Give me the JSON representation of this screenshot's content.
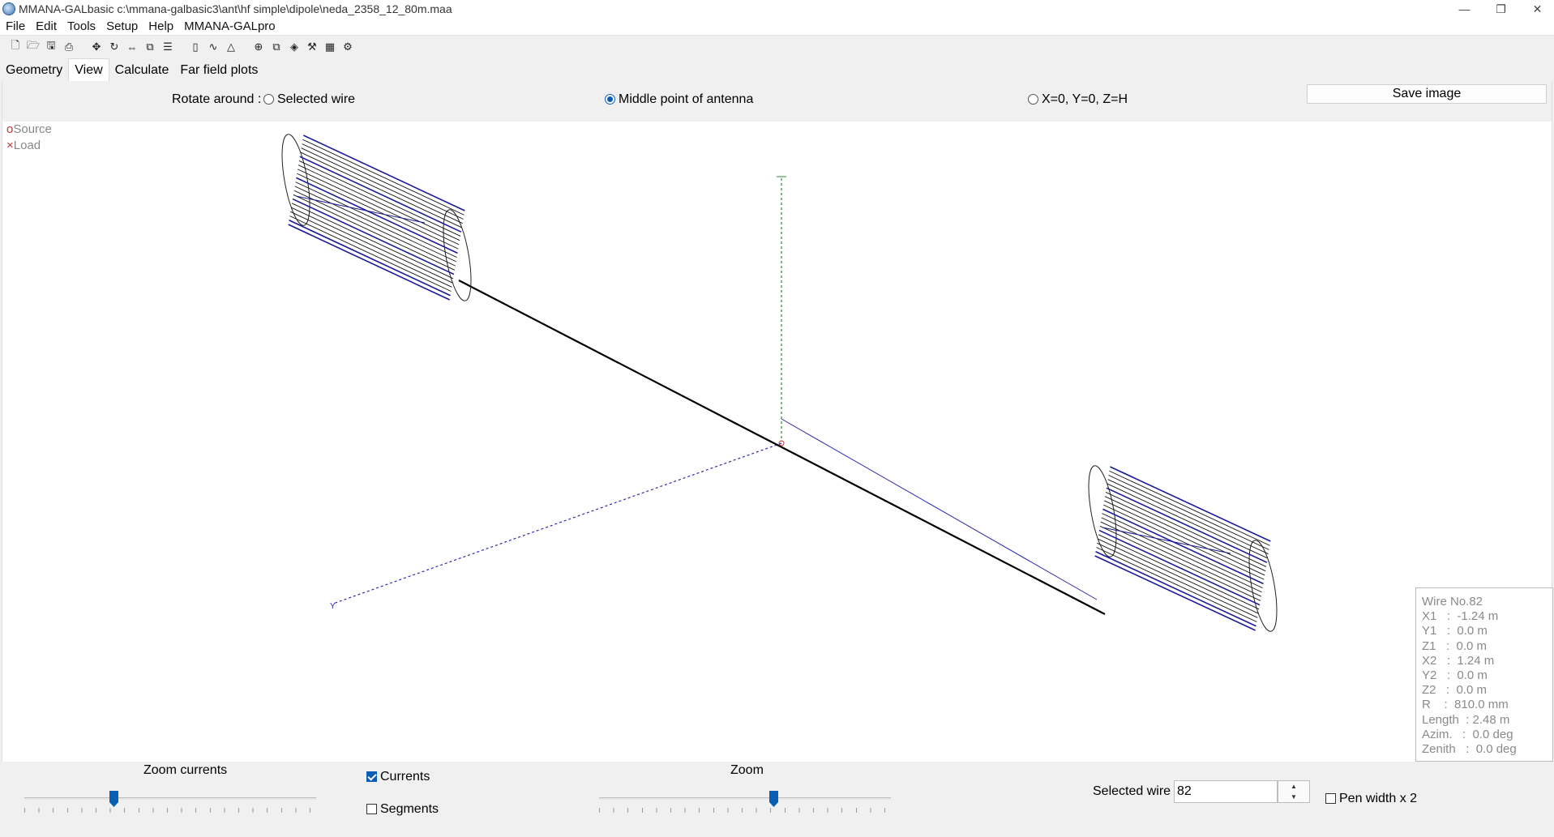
{
  "window": {
    "title": "MMANA-GALbasic c:\\mmana-galbasic3\\ant\\hf simple\\dipole\\neda_2358_12_80m.maa",
    "minimize": "—",
    "restore": "❐",
    "close": "✕"
  },
  "menu": [
    "File",
    "Edit",
    "Tools",
    "Setup",
    "Help",
    "MMANA-GALpro"
  ],
  "toolbar_icons": [
    "new-file-icon",
    "open-file-icon",
    "save-icon",
    "save-as-icon",
    "move-icon",
    "rotate-icon",
    "stretch-icon",
    "copy-icon",
    "wire-list-icon",
    "document-icon",
    "chart-icon",
    "triangle-icon",
    "center-icon",
    "duplicate-icon",
    "3d-view-icon",
    "tools-icon",
    "calculator-icon",
    "settings-icon"
  ],
  "tabs": [
    {
      "label": "Geometry",
      "active": false
    },
    {
      "label": "View",
      "active": true
    },
    {
      "label": "Calculate",
      "active": false
    },
    {
      "label": "Far field plots",
      "active": false
    }
  ],
  "rotate": {
    "label": "Rotate around :",
    "options": [
      "Selected wire",
      "Middle point of antenna",
      "X=0, Y=0, Z=H"
    ],
    "selected": 1
  },
  "save_image_label": "Save image",
  "legend": {
    "source": "Source",
    "load": "Load",
    "source_marker": "o",
    "load_marker": "×"
  },
  "axis": {
    "y_label": "Y"
  },
  "wire_info": {
    "title": "Wire No.82",
    "lines": [
      "X1   :  -1.24 m",
      "Y1   :  0.0 m",
      "Z1   :  0.0 m",
      "X2   :  1.24 m",
      "Y2   :  0.0 m",
      "Z2   :  0.0 m",
      "R    :  810.0 mm",
      "Length  : 2.48 m",
      "Azim.   :  0.0 deg",
      "Zenith   :  0.0 deg"
    ]
  },
  "bottom": {
    "zoom_currents_label": "Zoom currents",
    "zoom_currents_value": 0.3,
    "currents_label": "Currents",
    "currents_checked": true,
    "segments_label": "Segments",
    "segments_checked": false,
    "zoom_label": "Zoom",
    "zoom_value": 0.6,
    "selected_wire_label": "Selected wire",
    "selected_wire_value": "82",
    "pen_width_label": "Pen width x 2",
    "pen_width_checked": false
  },
  "colors": {
    "accent": "#0a5fb4",
    "wire_black": "#000000",
    "wire_blue": "#1a1a9a",
    "axis_green": "#2a8a2a",
    "axis_blue": "#2a2aaa",
    "source_red": "#cc3333"
  }
}
